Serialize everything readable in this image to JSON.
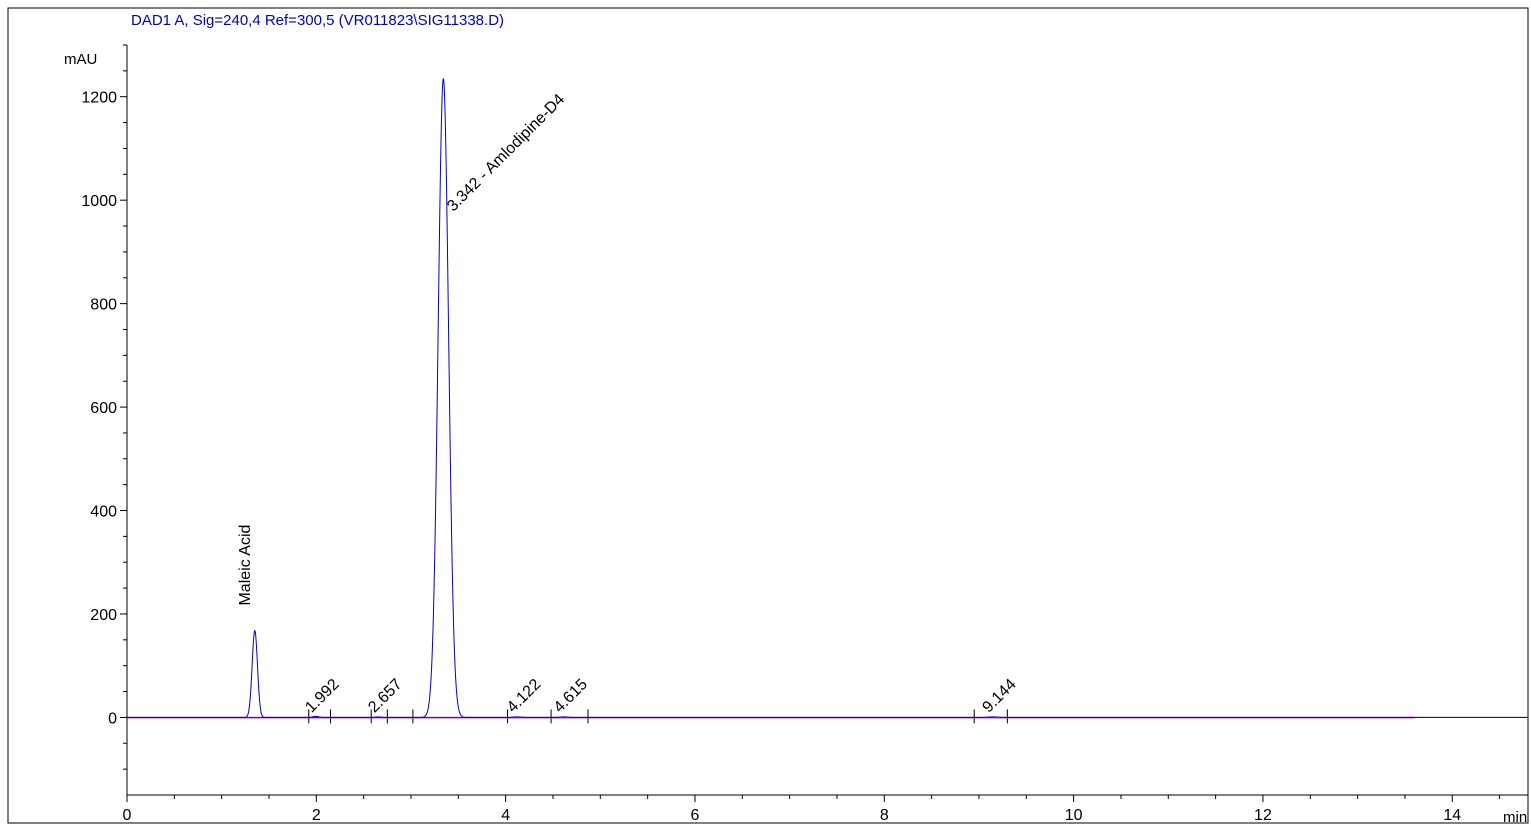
{
  "chart_data": {
    "type": "line",
    "title": "DAD1 A, Sig=240,4 Ref=300,5 (VR011823\\SIG11338.D)",
    "xlabel": "min",
    "ylabel": "mAU",
    "xlim": [
      0,
      14.8
    ],
    "ylim": [
      -150,
      1300
    ],
    "xticks": [
      0,
      2,
      4,
      6,
      8,
      10,
      12,
      14
    ],
    "yticks": [
      0,
      200,
      400,
      600,
      800,
      1000,
      1200
    ],
    "grid": false,
    "series": [
      {
        "color": "#0000cc",
        "peaks": [
          {
            "rt": 1.35,
            "height": 168,
            "sigma": 0.028
          },
          {
            "rt": 1.992,
            "height": 2,
            "sigma": 0.03
          },
          {
            "rt": 2.657,
            "height": 1,
            "sigma": 0.03
          },
          {
            "rt": 3.342,
            "height": 1235,
            "sigma": 0.055
          },
          {
            "rt": 4.122,
            "height": 1,
            "sigma": 0.04
          },
          {
            "rt": 4.615,
            "height": 1,
            "sigma": 0.04
          },
          {
            "rt": 9.144,
            "height": 1,
            "sigma": 0.05
          }
        ],
        "x_end": 13.6
      }
    ],
    "baseline_color": "#cc00cc",
    "peak_labels": [
      {
        "text": "Maleic Acid",
        "rt": 1.35,
        "y": 168
      },
      {
        "text": "1.992",
        "rt": 1.992,
        "y": 0
      },
      {
        "text": "2.657",
        "rt": 2.657,
        "y": 0
      },
      {
        "text": "3.342 - Amlodipine-D4",
        "rt": 3.342,
        "y": 1000
      },
      {
        "text": "4.122",
        "rt": 4.122,
        "y": 0
      },
      {
        "text": "4.615",
        "rt": 4.615,
        "y": 0
      },
      {
        "text": "9.144",
        "rt": 9.144,
        "y": 0
      }
    ],
    "integration_marks": [
      1.92,
      2.15,
      2.58,
      2.75,
      3.02,
      4.02,
      4.48,
      4.87,
      8.95,
      9.3
    ]
  }
}
